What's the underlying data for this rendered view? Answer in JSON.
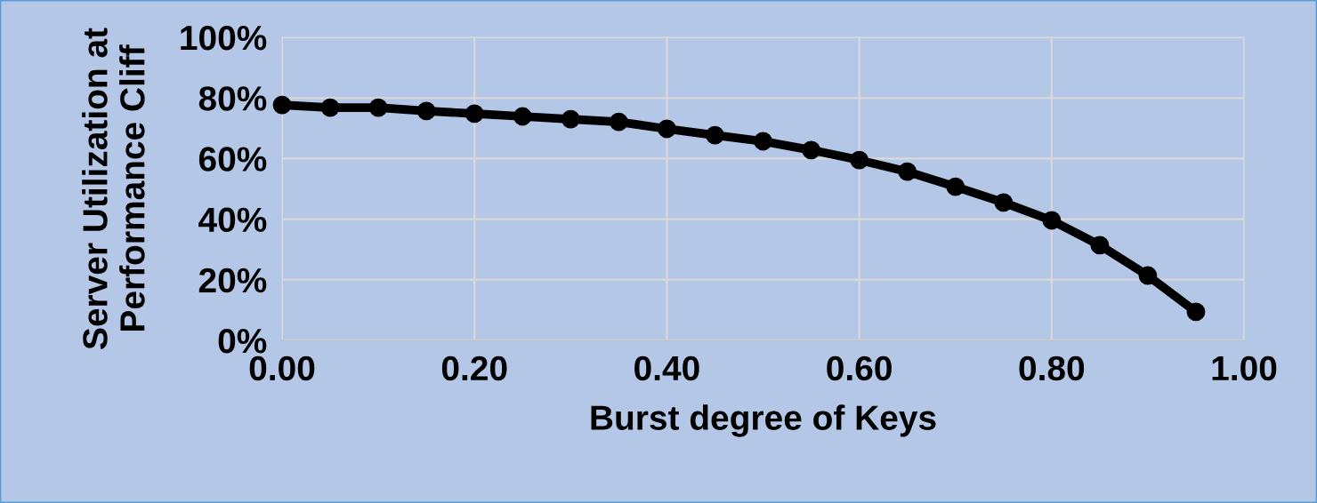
{
  "chart_data": {
    "type": "line",
    "xlabel": "Burst degree of Keys",
    "ylabel": "Server Utilization at\nPerformance Cliff",
    "x": [
      0,
      0.05,
      0.1,
      0.15,
      0.2,
      0.25,
      0.3,
      0.35,
      0.4,
      0.45,
      0.5,
      0.55,
      0.6,
      0.65,
      0.7,
      0.75,
      0.8,
      0.85,
      0.9,
      0.95
    ],
    "series": [
      {
        "color": "#000000",
        "values": [
          77.7,
          76.8,
          76.8,
          75.7,
          74.8,
          73.9,
          73.0,
          72.1,
          69.8,
          67.7,
          65.7,
          62.8,
          59.5,
          55.7,
          50.7,
          45.5,
          39.6,
          31.4,
          21.4,
          9.4
        ]
      }
    ],
    "xlim": [
      0,
      1
    ],
    "xticks": [
      {
        "value": 0,
        "label": "0.00"
      },
      {
        "value": 0.2,
        "label": "0.20"
      },
      {
        "value": 0.4,
        "label": "0.40"
      },
      {
        "value": 0.6,
        "label": "0.60"
      },
      {
        "value": 0.8,
        "label": "0.80"
      },
      {
        "value": 1,
        "label": "1.00"
      }
    ],
    "ylim": [
      0,
      100
    ],
    "yticks": [
      {
        "value": 0,
        "label": "0%"
      },
      {
        "value": 20,
        "label": "20%"
      },
      {
        "value": 40,
        "label": "40%"
      },
      {
        "value": 60,
        "label": "60%"
      },
      {
        "value": 80,
        "label": "80%"
      },
      {
        "value": 100,
        "label": "100%"
      }
    ],
    "grid": true,
    "marker": "circle",
    "line_style": "solid"
  }
}
